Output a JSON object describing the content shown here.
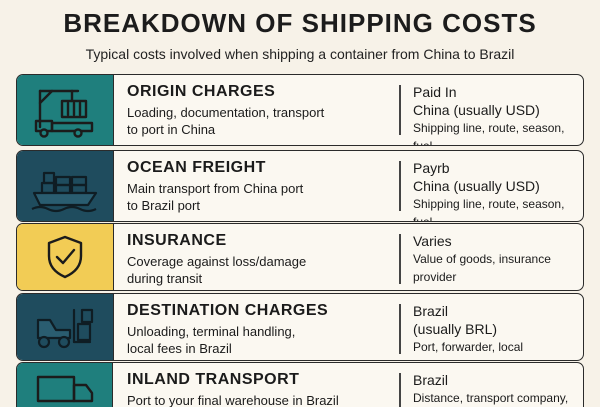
{
  "title": "BREAKDOWN OF SHIPPING COSTS",
  "subtitle": "Typical costs involved when shipping a container from China to Brazil",
  "colors": {
    "teal": "#1f7f7d",
    "navy": "#1f4c5e",
    "yellow": "#f2cc55",
    "background": "#f7f2e8"
  },
  "rows": [
    {
      "icon": "crane-truck-icon",
      "heading": "ORIGIN CHARGES",
      "desc1": "Loading, documentation, transport",
      "desc2": "to port in China",
      "r1": "Paid In",
      "r2": "China (usually USD)",
      "r3": "Shipping line, route, season, fuel"
    },
    {
      "icon": "cargo-ship-icon",
      "heading": "OCEAN FREIGHT",
      "desc1": "Main transport from China port",
      "desc2": "to Brazil port",
      "r1": "Payrb",
      "r2": "China (usually USD)",
      "r3": "Shipping line, route, season, fuel"
    },
    {
      "icon": "shield-check-icon",
      "heading": "INSURANCE",
      "desc1": "Coverage against loss/damage",
      "desc2": "during transit",
      "r1": "Varies",
      "r2": "Value of goods, insurance provider"
    },
    {
      "icon": "forklift-icon",
      "heading": "DESTINATION CHARGES",
      "desc1": "Unloading, terminal handling,",
      "desc2": "local fees in Brazil",
      "r1": "Brazil",
      "r2": "(usually BRL)",
      "r3": "Port, forwarder, local regulations"
    },
    {
      "icon": "delivery-truck-icon",
      "heading": "INLAND TRANSPORT",
      "desc1": "Port to your final warehouse in Brazil",
      "r1": "Brazil",
      "r2": "Distance, transport company,"
    }
  ]
}
